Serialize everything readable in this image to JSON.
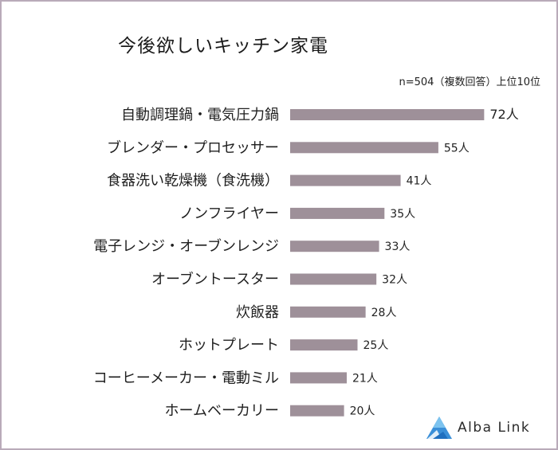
{
  "chart_data": {
    "type": "bar",
    "orientation": "horizontal",
    "title": "今後欲しいキッチン家電",
    "note": "n=504（複数回答）上位10位",
    "categories": [
      "自動調理鍋・電気圧力鍋",
      "ブレンダー・プロセッサー",
      "食器洗い乾燥機（食洗機）",
      "ノンフライヤー",
      "電子レンジ・オーブンレンジ",
      "オーブントースター",
      "炊飯器",
      "ホットプレート",
      "コーヒーメーカー・電動ミル",
      "ホームベーカリー"
    ],
    "values": [
      72,
      55,
      41,
      35,
      33,
      32,
      28,
      25,
      21,
      20
    ],
    "value_labels": [
      "72人",
      "55人",
      "41人",
      "35人",
      "33人",
      "32人",
      "28人",
      "25人",
      "21人",
      "20人"
    ],
    "unit": "人",
    "xlim": [
      0,
      80
    ],
    "bar_color": "#9e9099"
  },
  "logo": {
    "text": "Alba Link",
    "color": "#3a8fd8"
  }
}
